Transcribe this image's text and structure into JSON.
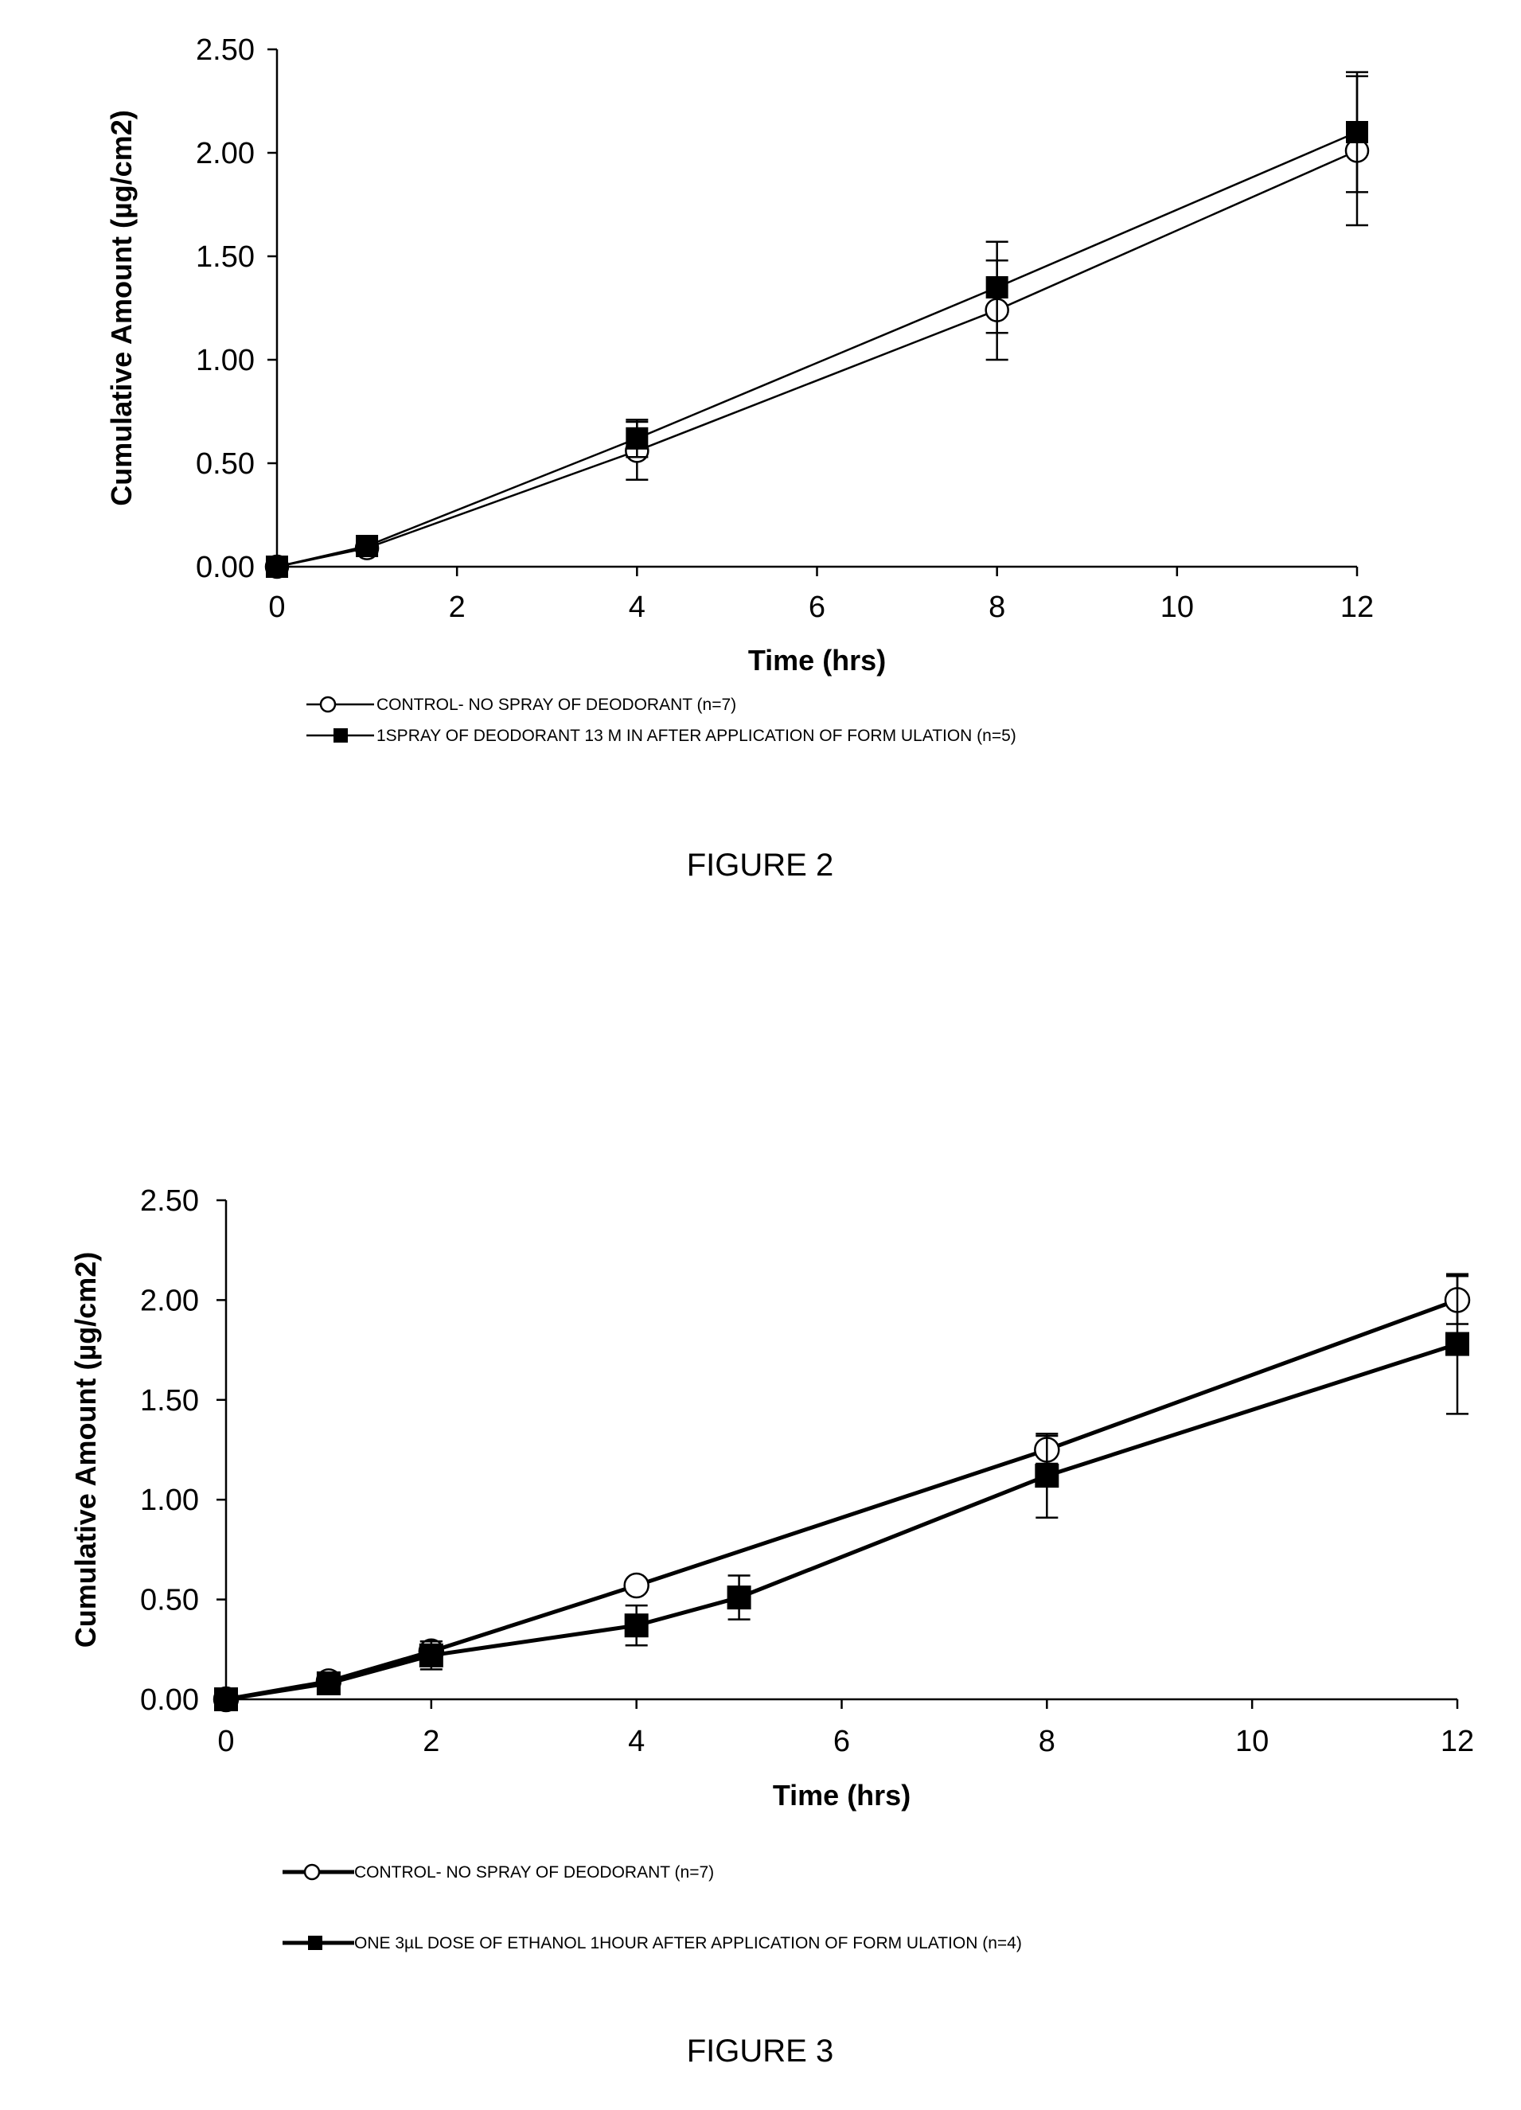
{
  "chart_data": [
    {
      "type": "line",
      "xlabel": "Time (hrs)",
      "ylabel": "Cumulative Amount (µg/cm2)",
      "xlim": [
        0,
        12
      ],
      "ylim": [
        0,
        2.5
      ],
      "xticks": [
        "0",
        "2",
        "4",
        "6",
        "8",
        "10",
        "12"
      ],
      "yticks": [
        "0.00",
        "0.50",
        "1.00",
        "1.50",
        "2.00",
        "2.50"
      ],
      "caption": "FIGURE 2",
      "series": [
        {
          "name": "CONTROL- NO SPRAY OF DEODORANT (n=7)",
          "marker": "open-circle",
          "x": [
            0,
            1,
            4,
            8,
            12
          ],
          "y": [
            0.0,
            0.09,
            0.56,
            1.24,
            2.01
          ],
          "err": [
            0.0,
            0.02,
            0.14,
            0.24,
            0.36
          ]
        },
        {
          "name": "1SPRAY OF DEODORANT 13 M IN AFTER APPLICATION OF FORM ULATION (n=5)",
          "marker": "filled-square",
          "x": [
            0,
            1,
            4,
            8,
            12
          ],
          "y": [
            0.0,
            0.1,
            0.62,
            1.35,
            2.1
          ],
          "err": [
            0.0,
            0.02,
            0.09,
            0.22,
            0.29
          ]
        }
      ]
    },
    {
      "type": "line",
      "xlabel": "Time (hrs)",
      "ylabel": "Cumulative Amount (µg/cm2)",
      "xlim": [
        0,
        12
      ],
      "ylim": [
        0,
        2.5
      ],
      "xticks": [
        "0",
        "2",
        "4",
        "6",
        "8",
        "10",
        "12"
      ],
      "yticks": [
        "0.00",
        "0.50",
        "1.00",
        "1.50",
        "2.00",
        "2.50"
      ],
      "caption": "FIGURE 3",
      "series": [
        {
          "name": "CONTROL- NO SPRAY OF DEODORANT (n=7)",
          "marker": "open-circle",
          "x": [
            0,
            1,
            2,
            4,
            8,
            12
          ],
          "y": [
            0.0,
            0.09,
            0.24,
            0.57,
            1.25,
            2.0
          ],
          "err": [
            0.0,
            0.02,
            0.05,
            0.0,
            0.07,
            0.12
          ]
        },
        {
          "name": "ONE 3µL DOSE OF ETHANOL 1HOUR AFTER APPLICATION OF FORM ULATION (n=4)",
          "marker": "filled-square",
          "x": [
            0,
            1,
            2,
            4,
            5,
            8,
            12
          ],
          "y": [
            0.0,
            0.08,
            0.22,
            0.37,
            0.51,
            1.12,
            1.78
          ],
          "err": [
            0.0,
            0.02,
            0.07,
            0.1,
            0.11,
            0.21,
            0.35
          ]
        }
      ]
    }
  ]
}
